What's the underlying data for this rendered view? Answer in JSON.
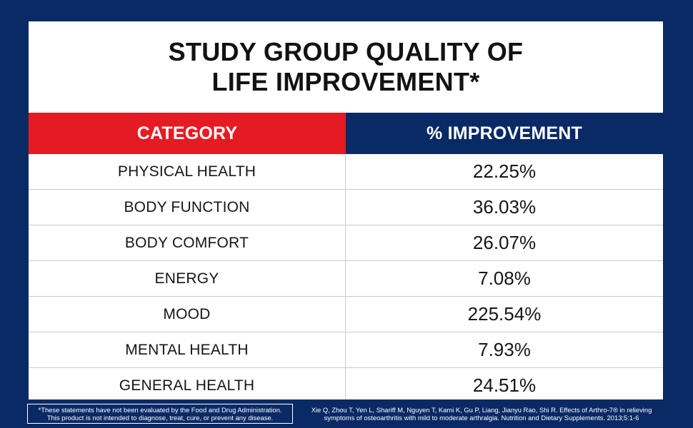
{
  "title": {
    "line1": "STUDY GROUP QUALITY OF",
    "line2": "LIFE IMPROVEMENT*"
  },
  "table": {
    "headers": {
      "category": "CATEGORY",
      "improvement": "% IMPROVEMENT"
    },
    "rows": [
      {
        "category": "PHYSICAL HEALTH",
        "improvement": "22.25%"
      },
      {
        "category": "BODY FUNCTION",
        "improvement": "36.03%"
      },
      {
        "category": "BODY COMFORT",
        "improvement": "26.07%"
      },
      {
        "category": "ENERGY",
        "improvement": "7.08%"
      },
      {
        "category": "MOOD",
        "improvement": "225.54%"
      },
      {
        "category": "MENTAL HEALTH",
        "improvement": "7.93%"
      },
      {
        "category": "GENERAL HEALTH",
        "improvement": "24.51%"
      }
    ]
  },
  "footer": {
    "disclaimer_line1": "*These statements have not been evaluated by the Food and Drug Administration.",
    "disclaimer_line2": "This product is not intended to diagnose, treat, cure, or prevent any disease.",
    "citation_line1": "Xie Q, Zhou T, Yen L, Shariff M, Nguyen T, Kami K, Gu P, Liang, Jianyu Rao, Shi R. Effects of Arthro-7® in relieving",
    "citation_line2": "symptoms of osteoarthritis with mild to moderate arthralgia. Nutrition and Dietary Supplements. 2013;5:1-6"
  },
  "colors": {
    "background_navy": "#0a2a66",
    "header_red": "#e41b23",
    "header_navy": "#0a2a66"
  }
}
